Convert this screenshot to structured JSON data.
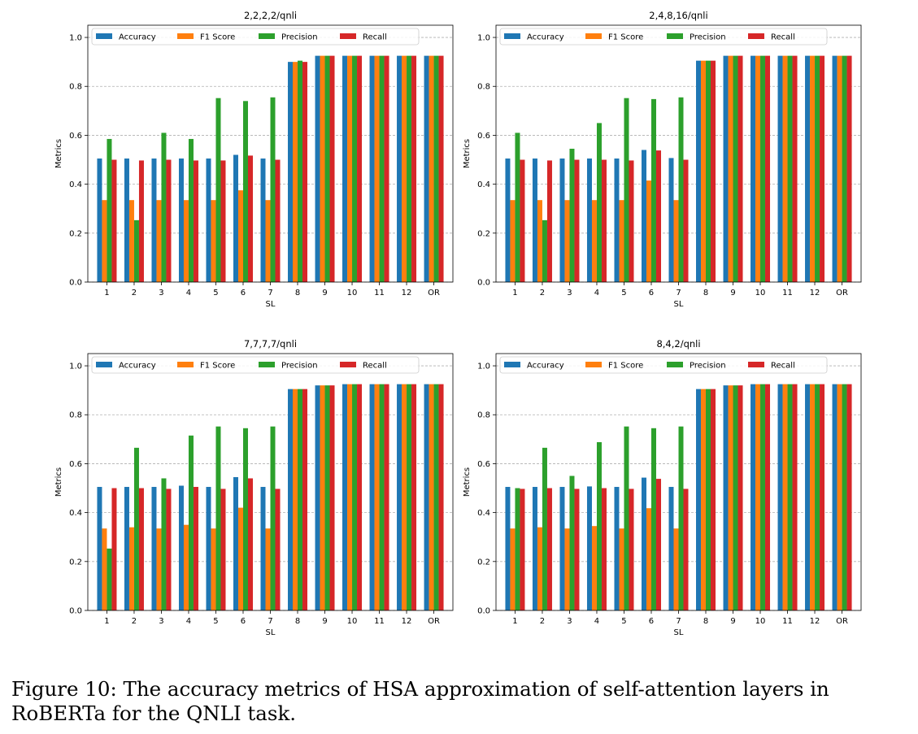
{
  "caption": "Figure 10: The accuracy metrics of HSA approximation of self-attention layers in RoBERTa for the QNLI task.",
  "colors": {
    "Accuracy": "#1f77b4",
    "F1 Score": "#ff7f0e",
    "Precision": "#2ca02c",
    "Recall": "#d62728"
  },
  "chart_data": [
    {
      "type": "bar",
      "title": "2,2,2,2/qnli",
      "xlabel": "SL",
      "ylabel": "Metrics",
      "ylim": [
        0,
        1.05
      ],
      "yticks": [
        "0.0",
        "0.2",
        "0.4",
        "0.6",
        "0.8",
        "1.0"
      ],
      "grid": "y-dashed",
      "legend": "top, horizontal",
      "categories": [
        "1",
        "2",
        "3",
        "4",
        "5",
        "6",
        "7",
        "8",
        "9",
        "10",
        "11",
        "12",
        "OR"
      ],
      "series": [
        {
          "name": "Accuracy",
          "values": [
            0.505,
            0.505,
            0.505,
            0.505,
            0.505,
            0.52,
            0.505,
            0.9,
            0.925,
            0.925,
            0.925,
            0.925,
            0.925
          ]
        },
        {
          "name": "F1 Score",
          "values": [
            0.335,
            0.335,
            0.335,
            0.335,
            0.335,
            0.375,
            0.335,
            0.9,
            0.925,
            0.925,
            0.925,
            0.925,
            0.925
          ]
        },
        {
          "name": "Precision",
          "values": [
            0.585,
            0.253,
            0.61,
            0.585,
            0.752,
            0.74,
            0.755,
            0.905,
            0.925,
            0.925,
            0.925,
            0.925,
            0.925
          ]
        },
        {
          "name": "Recall",
          "values": [
            0.5,
            0.497,
            0.5,
            0.497,
            0.497,
            0.517,
            0.5,
            0.9,
            0.925,
            0.925,
            0.925,
            0.925,
            0.925
          ]
        }
      ]
    },
    {
      "type": "bar",
      "title": "2,4,8,16/qnli",
      "xlabel": "SL",
      "ylabel": "Metrics",
      "ylim": [
        0,
        1.05
      ],
      "yticks": [
        "0.0",
        "0.2",
        "0.4",
        "0.6",
        "0.8",
        "1.0"
      ],
      "grid": "y-dashed",
      "legend": "top, horizontal",
      "categories": [
        "1",
        "2",
        "3",
        "4",
        "5",
        "6",
        "7",
        "8",
        "9",
        "10",
        "11",
        "12",
        "OR"
      ],
      "series": [
        {
          "name": "Accuracy",
          "values": [
            0.505,
            0.505,
            0.505,
            0.505,
            0.505,
            0.54,
            0.507,
            0.905,
            0.925,
            0.925,
            0.925,
            0.925,
            0.925
          ]
        },
        {
          "name": "F1 Score",
          "values": [
            0.335,
            0.335,
            0.335,
            0.335,
            0.335,
            0.415,
            0.335,
            0.905,
            0.925,
            0.925,
            0.925,
            0.925,
            0.925
          ]
        },
        {
          "name": "Precision",
          "values": [
            0.61,
            0.253,
            0.545,
            0.65,
            0.752,
            0.748,
            0.755,
            0.905,
            0.925,
            0.925,
            0.925,
            0.925,
            0.925
          ]
        },
        {
          "name": "Recall",
          "values": [
            0.5,
            0.497,
            0.5,
            0.5,
            0.497,
            0.538,
            0.5,
            0.905,
            0.925,
            0.925,
            0.925,
            0.925,
            0.925
          ]
        }
      ]
    },
    {
      "type": "bar",
      "title": "7,7,7,7/qnli",
      "xlabel": "SL",
      "ylabel": "Metrics",
      "ylim": [
        0,
        1.05
      ],
      "yticks": [
        "0.0",
        "0.2",
        "0.4",
        "0.6",
        "0.8",
        "1.0"
      ],
      "grid": "y-dashed",
      "legend": "top, horizontal",
      "categories": [
        "1",
        "2",
        "3",
        "4",
        "5",
        "6",
        "7",
        "8",
        "9",
        "10",
        "11",
        "12",
        "OR"
      ],
      "series": [
        {
          "name": "Accuracy",
          "values": [
            0.505,
            0.505,
            0.505,
            0.51,
            0.505,
            0.545,
            0.505,
            0.905,
            0.92,
            0.925,
            0.925,
            0.925,
            0.925
          ]
        },
        {
          "name": "F1 Score",
          "values": [
            0.335,
            0.34,
            0.335,
            0.35,
            0.335,
            0.42,
            0.335,
            0.905,
            0.92,
            0.925,
            0.925,
            0.925,
            0.925
          ]
        },
        {
          "name": "Precision",
          "values": [
            0.253,
            0.665,
            0.54,
            0.715,
            0.752,
            0.745,
            0.752,
            0.905,
            0.92,
            0.925,
            0.925,
            0.925,
            0.925
          ]
        },
        {
          "name": "Recall",
          "values": [
            0.5,
            0.5,
            0.497,
            0.505,
            0.497,
            0.54,
            0.497,
            0.905,
            0.92,
            0.925,
            0.925,
            0.925,
            0.925
          ]
        }
      ]
    },
    {
      "type": "bar",
      "title": "8,4,2/qnli",
      "xlabel": "SL",
      "ylabel": "Metrics",
      "ylim": [
        0,
        1.05
      ],
      "yticks": [
        "0.0",
        "0.2",
        "0.4",
        "0.6",
        "0.8",
        "1.0"
      ],
      "grid": "y-dashed",
      "legend": "top, horizontal",
      "categories": [
        "1",
        "2",
        "3",
        "4",
        "5",
        "6",
        "7",
        "8",
        "9",
        "10",
        "11",
        "12",
        "OR"
      ],
      "series": [
        {
          "name": "Accuracy",
          "values": [
            0.505,
            0.505,
            0.505,
            0.507,
            0.505,
            0.543,
            0.505,
            0.905,
            0.92,
            0.925,
            0.925,
            0.925,
            0.925
          ]
        },
        {
          "name": "F1 Score",
          "values": [
            0.335,
            0.34,
            0.335,
            0.345,
            0.335,
            0.418,
            0.335,
            0.905,
            0.92,
            0.925,
            0.925,
            0.925,
            0.925
          ]
        },
        {
          "name": "Precision",
          "values": [
            0.5,
            0.665,
            0.55,
            0.688,
            0.752,
            0.745,
            0.752,
            0.905,
            0.92,
            0.925,
            0.925,
            0.925,
            0.925
          ]
        },
        {
          "name": "Recall",
          "values": [
            0.497,
            0.5,
            0.497,
            0.5,
            0.497,
            0.538,
            0.497,
            0.905,
            0.92,
            0.925,
            0.925,
            0.925,
            0.925
          ]
        }
      ]
    }
  ]
}
